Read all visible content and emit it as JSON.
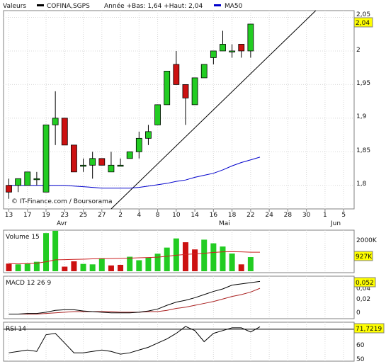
{
  "legend": {
    "item1": "Valeurs",
    "item2": "COFINA,SGPS",
    "item3": "Année +Bas: 1,64 +Haut: 2,04",
    "item4": "MA50"
  },
  "price_panel": {
    "watermark": "© IT-Finance.com / Boursorama",
    "last_value": "2,04",
    "y_ticks": [
      "2,05",
      "2",
      "1,95",
      "1,9",
      "1,85",
      "1,8"
    ]
  },
  "volume_panel": {
    "label": "Volume 15",
    "y_ticks": [
      "2000K"
    ],
    "last_value": "927K"
  },
  "macd_panel": {
    "label": "MACD 12 26 9",
    "y_ticks": [
      "0,04",
      "0,02",
      "0"
    ],
    "last_value": "0,052"
  },
  "rsi_panel": {
    "label": "RSI 14",
    "y_ticks": [
      "60",
      "50"
    ],
    "last_value": "71,7219"
  },
  "x_axis": {
    "tick_labels": [
      "13",
      "17",
      "19",
      "23",
      "25",
      "27",
      "2",
      "4",
      "8",
      "10",
      "14",
      "16",
      "18",
      "22",
      "24",
      "28",
      "30",
      "1",
      "5"
    ],
    "month_labels": [
      "Avr",
      "Mai",
      "Jun"
    ]
  },
  "colors": {
    "up": "#22cc22",
    "down": "#cc1111",
    "ma50": "#0000cc",
    "volume_ma": "#cc2222",
    "macd_signal": "#aa2222",
    "highlight": "#ffff00"
  },
  "chart_data": [
    {
      "type": "candlestick",
      "title": "COFINA,SGPS",
      "ylim": [
        1.765,
        2.06
      ],
      "candles": [
        {
          "o": 1.8,
          "h": 1.81,
          "l": 1.78,
          "c": 1.79
        },
        {
          "o": 1.8,
          "h": 1.81,
          "l": 1.79,
          "c": 1.81
        },
        {
          "o": 1.8,
          "h": 1.82,
          "l": 1.8,
          "c": 1.82
        },
        {
          "o": 1.81,
          "h": 1.82,
          "l": 1.8,
          "c": 1.81
        },
        {
          "o": 1.79,
          "h": 1.89,
          "l": 1.79,
          "c": 1.89
        },
        {
          "o": 1.89,
          "h": 1.94,
          "l": 1.86,
          "c": 1.9
        },
        {
          "o": 1.9,
          "h": 1.9,
          "l": 1.86,
          "c": 1.86
        },
        {
          "o": 1.86,
          "h": 1.86,
          "l": 1.82,
          "c": 1.82
        },
        {
          "o": 1.83,
          "h": 1.84,
          "l": 1.82,
          "c": 1.83
        },
        {
          "o": 1.83,
          "h": 1.85,
          "l": 1.81,
          "c": 1.84
        },
        {
          "o": 1.84,
          "h": 1.84,
          "l": 1.83,
          "c": 1.83
        },
        {
          "o": 1.82,
          "h": 1.85,
          "l": 1.82,
          "c": 1.83
        },
        {
          "o": 1.83,
          "h": 1.84,
          "l": 1.83,
          "c": 1.83
        },
        {
          "o": 1.84,
          "h": 1.85,
          "l": 1.84,
          "c": 1.85
        },
        {
          "o": 1.85,
          "h": 1.88,
          "l": 1.84,
          "c": 1.87
        },
        {
          "o": 1.87,
          "h": 1.89,
          "l": 1.86,
          "c": 1.88
        },
        {
          "o": 1.89,
          "h": 1.92,
          "l": 1.89,
          "c": 1.92
        },
        {
          "o": 1.92,
          "h": 1.97,
          "l": 1.92,
          "c": 1.97
        },
        {
          "o": 1.98,
          "h": 2.0,
          "l": 1.95,
          "c": 1.95
        },
        {
          "o": 1.95,
          "h": 1.95,
          "l": 1.89,
          "c": 1.93
        },
        {
          "o": 1.92,
          "h": 1.96,
          "l": 1.92,
          "c": 1.96
        },
        {
          "o": 1.96,
          "h": 1.98,
          "l": 1.96,
          "c": 1.98
        },
        {
          "o": 1.99,
          "h": 2.0,
          "l": 1.98,
          "c": 2.0
        },
        {
          "o": 2.0,
          "h": 2.03,
          "l": 2.0,
          "c": 2.01
        },
        {
          "o": 2.0,
          "h": 2.01,
          "l": 1.99,
          "c": 2.0
        },
        {
          "o": 2.01,
          "h": 2.01,
          "l": 1.99,
          "c": 2.0
        },
        {
          "o": 2.0,
          "h": 2.04,
          "l": 1.99,
          "c": 2.04
        }
      ],
      "ma50": [
        1.8,
        1.8,
        1.8,
        1.8,
        1.8,
        1.8,
        1.8,
        1.799,
        1.798,
        1.797,
        1.796,
        1.796,
        1.796,
        1.796,
        1.797,
        1.799,
        1.801,
        1.803,
        1.806,
        1.808,
        1.812,
        1.815,
        1.818,
        1.823,
        1.829,
        1.834,
        1.838,
        1.842
      ],
      "trendline": [
        [
          11,
          1.765
        ],
        [
          33,
          2.06
        ]
      ]
    },
    {
      "type": "bar",
      "title": "Volume 15",
      "ylim": [
        0,
        2600
      ],
      "unit": "K",
      "values": [
        500,
        450,
        520,
        620,
        2500,
        2650,
        300,
        650,
        480,
        450,
        850,
        380,
        420,
        950,
        720,
        900,
        1150,
        1550,
        2150,
        1900,
        1430,
        2070,
        1830,
        1620,
        1160,
        450,
        927
      ],
      "directions": [
        "down",
        "up",
        "up",
        "up",
        "up",
        "up",
        "down",
        "down",
        "up",
        "up",
        "up",
        "down",
        "down",
        "up",
        "up",
        "up",
        "up",
        "up",
        "up",
        "down",
        "down",
        "up",
        "up",
        "up",
        "up",
        "down",
        "up"
      ],
      "ma": [
        500,
        480,
        500,
        530,
        620,
        750,
        760,
        780,
        790,
        810,
        820,
        830,
        840,
        860,
        880,
        900,
        920,
        980,
        1050,
        1100,
        1140,
        1180,
        1230,
        1270,
        1280,
        1270,
        1250,
        1250
      ]
    },
    {
      "type": "line",
      "title": "MACD 12 26 9",
      "ylim": [
        -0.005,
        0.058
      ],
      "series": [
        {
          "values": [
            0.0,
            0.0,
            0.001,
            0.001,
            0.003,
            0.006,
            0.007,
            0.007,
            0.005,
            0.004,
            0.003,
            0.002,
            0.002,
            0.002,
            0.003,
            0.005,
            0.008,
            0.014,
            0.019,
            0.022,
            0.026,
            0.031,
            0.036,
            0.04,
            0.046,
            0.048,
            0.05,
            0.052
          ]
        },
        {
          "values": [
            0.0,
            0.0,
            0.0,
            0.0,
            0.001,
            0.002,
            0.003,
            0.004,
            0.004,
            0.004,
            0.004,
            0.004,
            0.003,
            0.003,
            0.003,
            0.004,
            0.004,
            0.006,
            0.009,
            0.011,
            0.014,
            0.017,
            0.02,
            0.024,
            0.028,
            0.031,
            0.035,
            0.041
          ]
        }
      ]
    },
    {
      "type": "line",
      "title": "RSI 14",
      "ylim": [
        48,
        74
      ],
      "series": [
        {
          "values": [
            53,
            54,
            55,
            54,
            66,
            67,
            60,
            53,
            53,
            54,
            55,
            54,
            52,
            53,
            55,
            57,
            60,
            63,
            67,
            72,
            69,
            61,
            67,
            69,
            71,
            71,
            68,
            71.72
          ]
        }
      ]
    }
  ]
}
